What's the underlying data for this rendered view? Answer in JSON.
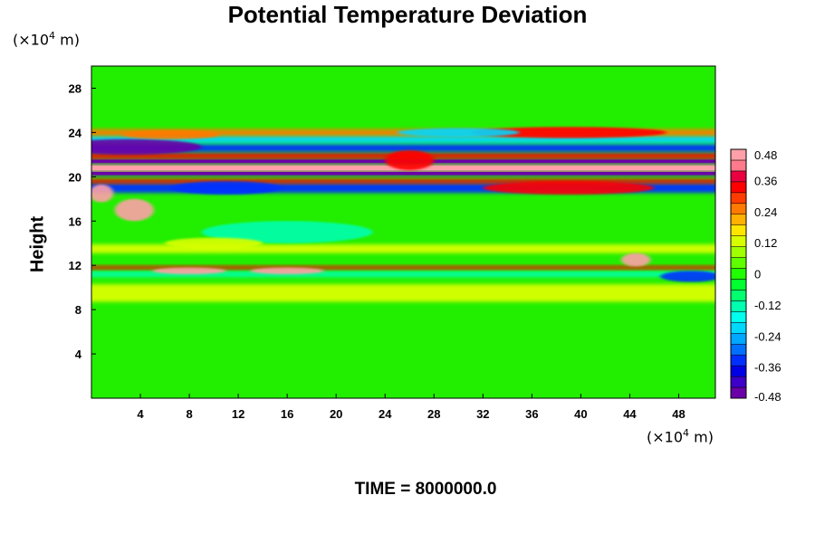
{
  "chart_data": {
    "type": "heatmap",
    "title": "Potential Temperature Deviation",
    "ylabel": "Height",
    "xlabel": "",
    "x_unit_prefix": "(×10",
    "x_unit_exp": "4",
    "x_unit_suffix": " m)",
    "y_unit_prefix": "(×10",
    "y_unit_exp": "4",
    "y_unit_suffix": " m)",
    "xlim": [
      0,
      51
    ],
    "ylim": [
      0,
      30
    ],
    "x_ticks": [
      4,
      8,
      12,
      16,
      20,
      24,
      28,
      32,
      36,
      40,
      44,
      48
    ],
    "y_ticks": [
      4,
      8,
      12,
      16,
      20,
      24,
      28
    ],
    "colorbar": {
      "min": -0.48,
      "max": 0.48,
      "levels": 33,
      "tick_labels": [
        "0.48",
        "0.36",
        "0.24",
        "0.12",
        "0",
        "-0.12",
        "-0.24",
        "-0.36",
        "-0.48"
      ],
      "tick_values": [
        0.48,
        0.36,
        0.24,
        0.12,
        0,
        -0.12,
        -0.24,
        -0.36,
        -0.48
      ],
      "colors": [
        "#6a00a8",
        "#3c00c8",
        "#0000e6",
        "#0030ff",
        "#0070ff",
        "#00a8ff",
        "#00d8ff",
        "#00ffee",
        "#00ffb0",
        "#00ff70",
        "#00ff30",
        "#20ff00",
        "#60ff00",
        "#a0ff00",
        "#d8ff00",
        "#ffe600",
        "#ffb000",
        "#ff7a00",
        "#ff3c00",
        "#ff0000",
        "#e80040",
        "#ff7a8a",
        "#ffa0a8"
      ]
    },
    "background_color": "#22ee00",
    "bands": [
      {
        "y": 9.5,
        "value": 0.12,
        "thickness": 1.6
      },
      {
        "y": 11.2,
        "value": -0.12,
        "thickness": 0.5
      },
      {
        "y": 11.8,
        "value": 0.36,
        "thickness": 0.3
      },
      {
        "y": 13.5,
        "value": 0.12,
        "thickness": 0.8
      },
      {
        "y": 19.0,
        "value": -0.36,
        "thickness": 0.9
      },
      {
        "y": 19.6,
        "value": 0.36,
        "thickness": 0.4
      },
      {
        "y": 20.3,
        "value": -0.48,
        "thickness": 0.4
      },
      {
        "y": 20.8,
        "value": 0.48,
        "thickness": 0.6
      },
      {
        "y": 21.4,
        "value": -0.48,
        "thickness": 0.4
      },
      {
        "y": 21.9,
        "value": 0.36,
        "thickness": 0.5
      },
      {
        "y": 22.6,
        "value": -0.36,
        "thickness": 0.7
      },
      {
        "y": 23.4,
        "value": -0.24,
        "thickness": 0.7
      },
      {
        "y": 24.0,
        "value": 0.24,
        "thickness": 0.6
      }
    ],
    "blobs": [
      {
        "x": 3.0,
        "y": 22.7,
        "rx": 6.0,
        "ry": 0.7,
        "value": -0.48
      },
      {
        "x": 6.5,
        "y": 23.8,
        "rx": 4.0,
        "ry": 0.4,
        "value": 0.24
      },
      {
        "x": 11.0,
        "y": 19.0,
        "rx": 4.5,
        "ry": 0.6,
        "value": -0.36
      },
      {
        "x": 3.5,
        "y": 17.0,
        "rx": 1.6,
        "ry": 1.0,
        "value": 0.48
      },
      {
        "x": 0.8,
        "y": 18.5,
        "rx": 1.0,
        "ry": 0.8,
        "value": 0.48
      },
      {
        "x": 39.0,
        "y": 24.0,
        "rx": 8.0,
        "ry": 0.5,
        "value": 0.36
      },
      {
        "x": 39.0,
        "y": 19.0,
        "rx": 7.0,
        "ry": 0.6,
        "value": 0.36
      },
      {
        "x": 30.0,
        "y": 24.0,
        "rx": 5.0,
        "ry": 0.4,
        "value": -0.24
      },
      {
        "x": 8.0,
        "y": 11.5,
        "rx": 3.0,
        "ry": 0.3,
        "value": 0.48
      },
      {
        "x": 16.0,
        "y": 11.5,
        "rx": 3.0,
        "ry": 0.3,
        "value": 0.48
      },
      {
        "x": 44.5,
        "y": 12.5,
        "rx": 1.2,
        "ry": 0.6,
        "value": 0.48
      },
      {
        "x": 49.0,
        "y": 11.0,
        "rx": 2.5,
        "ry": 0.5,
        "value": -0.36
      },
      {
        "x": 16.0,
        "y": 15.0,
        "rx": 7.0,
        "ry": 1.0,
        "value": -0.12
      },
      {
        "x": 26.0,
        "y": 21.5,
        "rx": 2.0,
        "ry": 0.9,
        "value": 0.36
      },
      {
        "x": 10.0,
        "y": 14.0,
        "rx": 4.0,
        "ry": 0.5,
        "value": 0.12
      }
    ]
  },
  "footer": {
    "label": "TIME = 8000000.0"
  }
}
